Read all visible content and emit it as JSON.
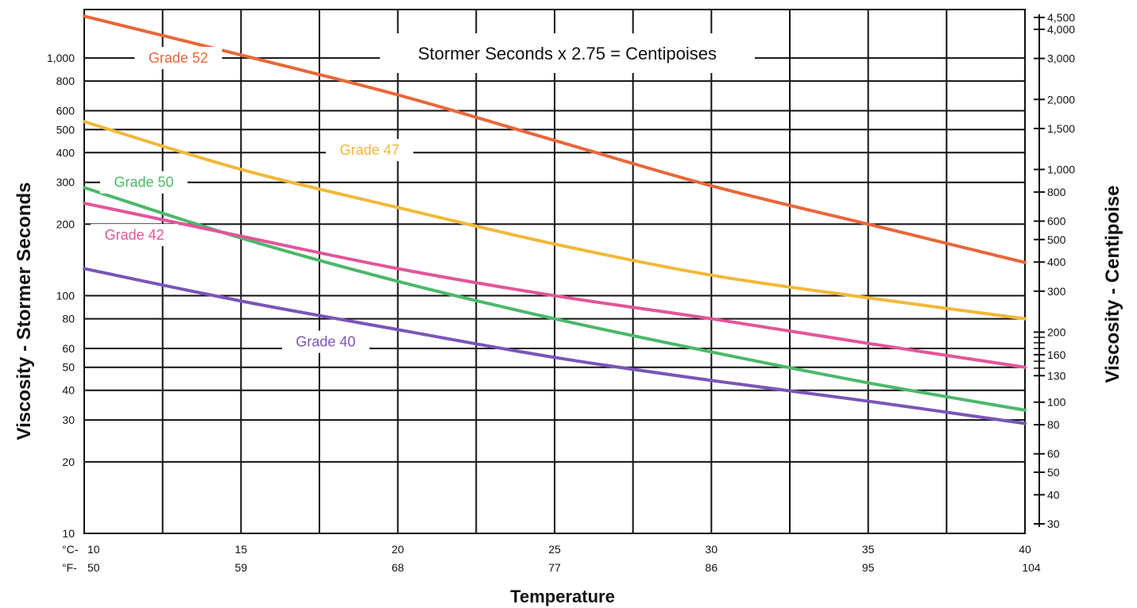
{
  "chart_data": {
    "type": "line",
    "note": "Stormer Seconds x 2.75 = Centipoises",
    "xlabel": "Temperature",
    "ylabel": "Viscosity - Stormer Seconds",
    "y2label": "Viscosity - Centipoise",
    "y_scale": "log",
    "ylim": [
      10,
      1600
    ],
    "x_unit_c_label": "°C-",
    "x_unit_f_label": "°F-",
    "x_ticks_c": [
      "10",
      "15",
      "20",
      "25",
      "30",
      "35",
      "40"
    ],
    "x_ticks_f": [
      "50",
      "59",
      "68",
      "77",
      "86",
      "95",
      "104"
    ],
    "xlim": [
      10,
      40
    ],
    "x_grid_step": 2.5,
    "y_ticks": [
      {
        "v": 10,
        "label": "10"
      },
      {
        "v": 20,
        "label": "20"
      },
      {
        "v": 30,
        "label": "30"
      },
      {
        "v": 40,
        "label": "40"
      },
      {
        "v": 50,
        "label": "50"
      },
      {
        "v": 60,
        "label": "60"
      },
      {
        "v": 80,
        "label": "80"
      },
      {
        "v": 100,
        "label": "100"
      },
      {
        "v": 200,
        "label": "200"
      },
      {
        "v": 300,
        "label": "300"
      },
      {
        "v": 400,
        "label": "400"
      },
      {
        "v": 500,
        "label": "500"
      },
      {
        "v": 600,
        "label": "600"
      },
      {
        "v": 800,
        "label": "800"
      },
      {
        "v": 1000,
        "label": "1,000"
      }
    ],
    "y2_ticks": [
      {
        "v": 30,
        "label": "30"
      },
      {
        "v": 40,
        "label": "40"
      },
      {
        "v": 50,
        "label": "50"
      },
      {
        "v": 60,
        "label": "60"
      },
      {
        "v": 80,
        "label": "80"
      },
      {
        "v": 100,
        "label": "100"
      },
      {
        "v": 130,
        "label": "130"
      },
      {
        "v": 160,
        "label": "160"
      },
      {
        "v": 200,
        "label": "200"
      },
      {
        "v": 300,
        "label": "300"
      },
      {
        "v": 400,
        "label": "400"
      },
      {
        "v": 500,
        "label": "500"
      },
      {
        "v": 600,
        "label": "600"
      },
      {
        "v": 800,
        "label": "800"
      },
      {
        "v": 1000,
        "label": "1,000"
      },
      {
        "v": 1500,
        "label": "1,500"
      },
      {
        "v": 2000,
        "label": "2,000"
      },
      {
        "v": 3000,
        "label": "3,000"
      },
      {
        "v": 4000,
        "label": "4,000"
      },
      {
        "v": 4500,
        "label": "4,500"
      }
    ],
    "y2_minor_ticks": [
      140,
      150,
      170,
      180,
      190
    ],
    "series": [
      {
        "name": "Grade 52",
        "color": "#e8673a",
        "x": [
          10,
          15,
          20,
          25,
          30,
          35,
          40
        ],
        "y": [
          1500,
          1030,
          700,
          450,
          290,
          200,
          138
        ]
      },
      {
        "name": "Grade 47",
        "color": "#f2b83a",
        "x": [
          10,
          15,
          20,
          25,
          30,
          35,
          40
        ],
        "y": [
          540,
          340,
          235,
          165,
          122,
          98,
          80
        ]
      },
      {
        "name": "Grade 50",
        "color": "#4cb86a",
        "x": [
          10,
          15,
          20,
          25,
          30,
          35,
          40
        ],
        "y": [
          285,
          175,
          115,
          80,
          58,
          43,
          33
        ]
      },
      {
        "name": "Grade 42",
        "color": "#e2559a",
        "x": [
          10,
          15,
          20,
          25,
          30,
          35,
          40
        ],
        "y": [
          245,
          178,
          130,
          100,
          80,
          63,
          50
        ]
      },
      {
        "name": "Grade 40",
        "color": "#7a55b8",
        "x": [
          10,
          15,
          20,
          25,
          30,
          35,
          40
        ],
        "y": [
          130,
          95,
          72,
          55,
          44,
          36,
          29
        ]
      }
    ],
    "series_labels": [
      {
        "text": "Grade 52",
        "x": 13,
        "y": 1000
      },
      {
        "text": "Grade 47",
        "x": 19.1,
        "y": 410
      },
      {
        "text": "Grade 50",
        "x": 11.9,
        "y": 300
      },
      {
        "text": "Grade 42",
        "x": 11.6,
        "y": 180
      },
      {
        "text": "Grade 40",
        "x": 17.7,
        "y": 64
      }
    ]
  }
}
